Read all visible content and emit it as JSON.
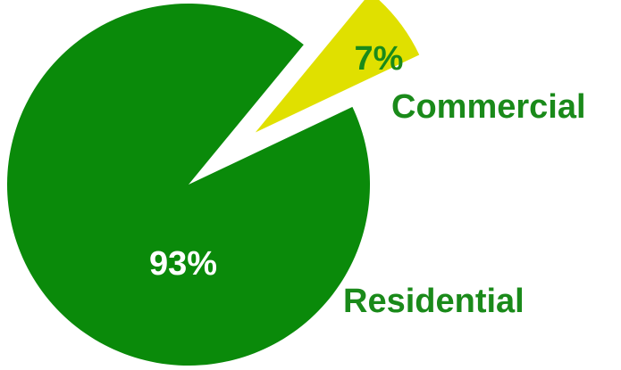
{
  "chart_data": {
    "type": "pie",
    "categories": [
      "Commercial",
      "Residential"
    ],
    "values": [
      7,
      93
    ],
    "value_labels": [
      "7%",
      "93%"
    ],
    "colors": [
      "#e0e000",
      "#0a8a0a"
    ],
    "label_color": "#1a8a1a",
    "exploded": "Commercial"
  }
}
